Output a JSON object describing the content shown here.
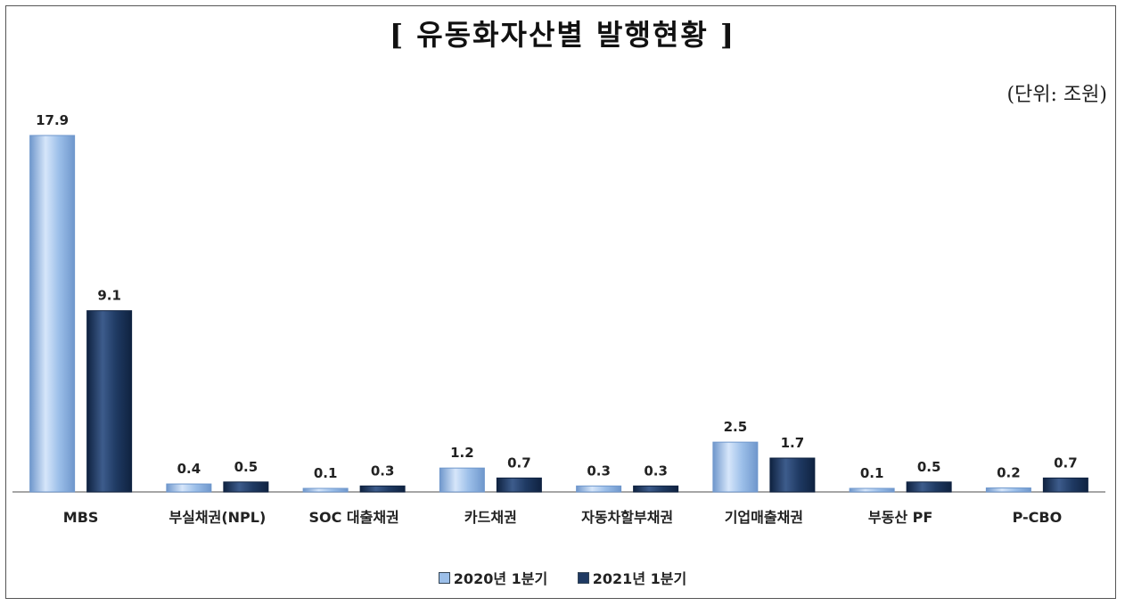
{
  "title": "[ 유동화자산별 발행현황 ]",
  "unit_label": "(단위: 조원)",
  "colors": {
    "series_2020": "#9cbfe9",
    "series_2021": "#1f3a63"
  },
  "chart_data": {
    "type": "bar",
    "title": "[ 유동화자산별 발행현황 ]",
    "unit": "(단위: 조원)",
    "xlabel": "",
    "ylabel": "",
    "ylim": [
      0,
      18
    ],
    "grid": false,
    "legend_position": "bottom",
    "categories": [
      "MBS",
      "부실채권(NPL)",
      "SOC 대출채권",
      "카드채권",
      "자동차할부채권",
      "기업매출채권",
      "부동산 PF",
      "P-CBO"
    ],
    "series": [
      {
        "name": "2020년 1분기",
        "values": [
          17.9,
          0.4,
          0.1,
          1.2,
          0.3,
          2.5,
          0.1,
          0.2
        ],
        "labels": [
          "17.9",
          "0.4",
          "0.1",
          "1.2",
          "0.3",
          "2.5",
          "0.1",
          "0.2"
        ]
      },
      {
        "name": "2021년 1분기",
        "values": [
          9.1,
          0.5,
          0.3,
          0.7,
          0.3,
          1.7,
          0.5,
          0.7
        ],
        "labels": [
          "9.1",
          "0.5",
          "0.3",
          "0.7",
          "0.3",
          "1.7",
          "0.5",
          "0.7"
        ]
      }
    ]
  }
}
